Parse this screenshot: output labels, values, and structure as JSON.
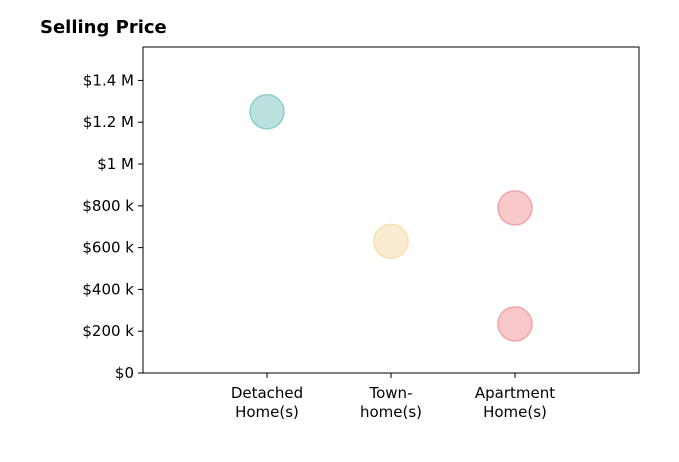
{
  "chart_data": {
    "type": "scatter",
    "title": "Selling Price",
    "xlabel": "",
    "ylabel": "",
    "categories": [
      [
        "Detached",
        "Home(s)"
      ],
      [
        "Town-",
        "home(s)"
      ],
      [
        "Apartment",
        "Home(s)"
      ]
    ],
    "ylim": [
      0,
      1560000
    ],
    "yticks": [
      0,
      200000,
      400000,
      600000,
      800000,
      1000000,
      1200000,
      1400000
    ],
    "ytick_labels": [
      "$0",
      "$200 k",
      "$400 k",
      "$600 k",
      "$800 k",
      "$1 M",
      "$1.2 M",
      "$1.4 M"
    ],
    "points": [
      {
        "category": 0,
        "y": 1250000,
        "color": "#8ecfc9"
      },
      {
        "category": 1,
        "y": 630000,
        "color": "#f6dfb0"
      },
      {
        "category": 2,
        "y": 790000,
        "color": "#f4a3a8"
      },
      {
        "category": 2,
        "y": 235000,
        "color": "#f4a3a8"
      }
    ],
    "grid": false,
    "legend": "none"
  }
}
